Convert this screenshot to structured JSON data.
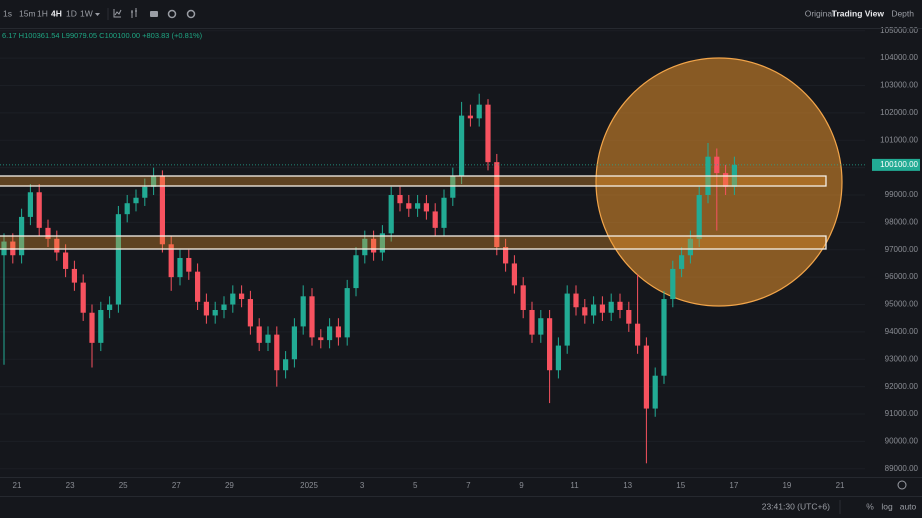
{
  "toolbar": {
    "intervals": [
      "1s",
      "15m",
      "1H",
      "4H",
      "1D",
      "1W"
    ],
    "views": [
      "Original",
      "Trading View",
      "Depth"
    ]
  },
  "legend": "6.17 H100361.54 L99079.05 C100100.00 +803.83 (+0.81%)",
  "status": {
    "time": "23:41:30 (UTC+6)",
    "scale": [
      "%",
      "log",
      "auto"
    ]
  },
  "chart_data": {
    "type": "candlestick",
    "x_labels": [
      "21",
      "23",
      "25",
      "27",
      "29",
      "2025",
      "3",
      "5",
      "7",
      "9",
      "11",
      "13",
      "15",
      "17",
      "19",
      "21"
    ],
    "open": [
      96800,
      97300,
      96800,
      98200,
      99100,
      97800,
      97400,
      96900,
      96300,
      95800,
      94700,
      93600,
      94800,
      95000,
      98300,
      98700,
      98900,
      99300,
      99700,
      97200,
      96000,
      96700,
      96200,
      95100,
      94600,
      94800,
      95000,
      95400,
      95200,
      94200,
      93600,
      93900,
      92600,
      93000,
      94200,
      95300,
      93800,
      93700,
      94200,
      93800,
      95600,
      96800,
      97400,
      96900,
      97600,
      99000,
      98700,
      98500,
      98700,
      98400,
      97800,
      98900,
      99700,
      101900,
      101800,
      102300,
      100200,
      97100,
      96500,
      95700,
      94800,
      93900,
      94500,
      92600,
      93500,
      95400,
      94900,
      94600,
      95000,
      94700,
      95100,
      94800,
      94300,
      93500,
      91200,
      92400,
      95200,
      96300,
      96800,
      97400,
      99000,
      100400,
      99800,
      99300
    ],
    "high": [
      97600,
      97600,
      98500,
      99400,
      99400,
      98100,
      97700,
      97200,
      96600,
      96100,
      95000,
      95100,
      95300,
      98600,
      99000,
      99200,
      99600,
      100000,
      99900,
      97500,
      97000,
      97000,
      96500,
      95400,
      95100,
      95300,
      95700,
      95700,
      95500,
      94500,
      94200,
      94200,
      93300,
      94500,
      95700,
      95600,
      94100,
      94500,
      94500,
      95900,
      97100,
      97700,
      97700,
      97900,
      99300,
      99300,
      99000,
      99000,
      99000,
      98700,
      99200,
      100000,
      102400,
      102300,
      102700,
      102500,
      100500,
      97400,
      96800,
      96000,
      95100,
      94800,
      94800,
      93800,
      95700,
      95700,
      95200,
      95300,
      95300,
      95400,
      95400,
      95100,
      96100,
      93800,
      92700,
      95500,
      96600,
      97100,
      97700,
      99300,
      100900,
      100700,
      100100,
      100400
    ],
    "low": [
      92800,
      96500,
      96500,
      97900,
      97500,
      97100,
      96600,
      96000,
      95500,
      94400,
      92700,
      93300,
      94500,
      94700,
      98000,
      98400,
      98600,
      99000,
      96900,
      95500,
      95700,
      95900,
      94800,
      94300,
      94300,
      94500,
      94700,
      94900,
      93900,
      93300,
      93300,
      92000,
      92300,
      92700,
      93900,
      93500,
      93400,
      93400,
      93500,
      93500,
      95300,
      96500,
      96600,
      96600,
      97300,
      98400,
      98200,
      98200,
      98100,
      97500,
      97500,
      98600,
      99400,
      101500,
      101500,
      99900,
      96800,
      96200,
      95400,
      94500,
      93600,
      93600,
      91400,
      92300,
      93200,
      94600,
      94300,
      94300,
      94400,
      94400,
      94500,
      94000,
      93200,
      89200,
      90900,
      92100,
      94900,
      96000,
      96500,
      97100,
      98700,
      97700,
      99000,
      99000
    ],
    "close": [
      97300,
      96800,
      98200,
      99100,
      97800,
      97400,
      96900,
      96300,
      95800,
      94700,
      93600,
      94800,
      95000,
      98300,
      98700,
      98900,
      99300,
      99700,
      97200,
      96000,
      96700,
      96200,
      95100,
      94600,
      94800,
      95000,
      95400,
      95200,
      94200,
      93600,
      93900,
      92600,
      93000,
      94200,
      95300,
      93800,
      93700,
      94200,
      93800,
      95600,
      96800,
      97400,
      96900,
      97600,
      99000,
      98700,
      98500,
      98700,
      98400,
      97800,
      98900,
      99700,
      101900,
      101800,
      102300,
      100200,
      97100,
      96500,
      95700,
      94800,
      93900,
      94500,
      92600,
      93500,
      95400,
      94900,
      94600,
      95000,
      94700,
      95100,
      94800,
      94300,
      93500,
      91200,
      92400,
      95200,
      96300,
      96800,
      97400,
      99000,
      100400,
      99800,
      99300,
      100100
    ],
    "up_color": "#22ab94",
    "down_color": "#f7525f",
    "ylim": [
      88700,
      105100
    ],
    "yticks": [
      {
        "value": 89000,
        "label": "89000.00"
      },
      {
        "value": 90000,
        "label": "90000.00"
      },
      {
        "value": 91000,
        "label": "91000.00"
      },
      {
        "value": 92000,
        "label": "92000.00"
      },
      {
        "value": 93000,
        "label": "93000.00"
      },
      {
        "value": 94000,
        "label": "94000.00"
      },
      {
        "value": 95000,
        "label": "95000.00"
      },
      {
        "value": 96000,
        "label": "96000.00"
      },
      {
        "value": 97000,
        "label": "97000.00"
      },
      {
        "value": 98000,
        "label": "98000.00"
      },
      {
        "value": 99000,
        "label": "99000.00"
      },
      {
        "value": 100000,
        "label": "100000.00"
      },
      {
        "value": 101000,
        "label": "101000.00"
      },
      {
        "value": 102000,
        "label": "102000.00"
      },
      {
        "value": 103000,
        "label": "103000.00"
      },
      {
        "value": 104000,
        "label": "104000.00"
      },
      {
        "value": 105000,
        "label": "105000.00"
      }
    ],
    "last_price": {
      "value": 100100,
      "label": "100100.00"
    },
    "grid": true
  }
}
